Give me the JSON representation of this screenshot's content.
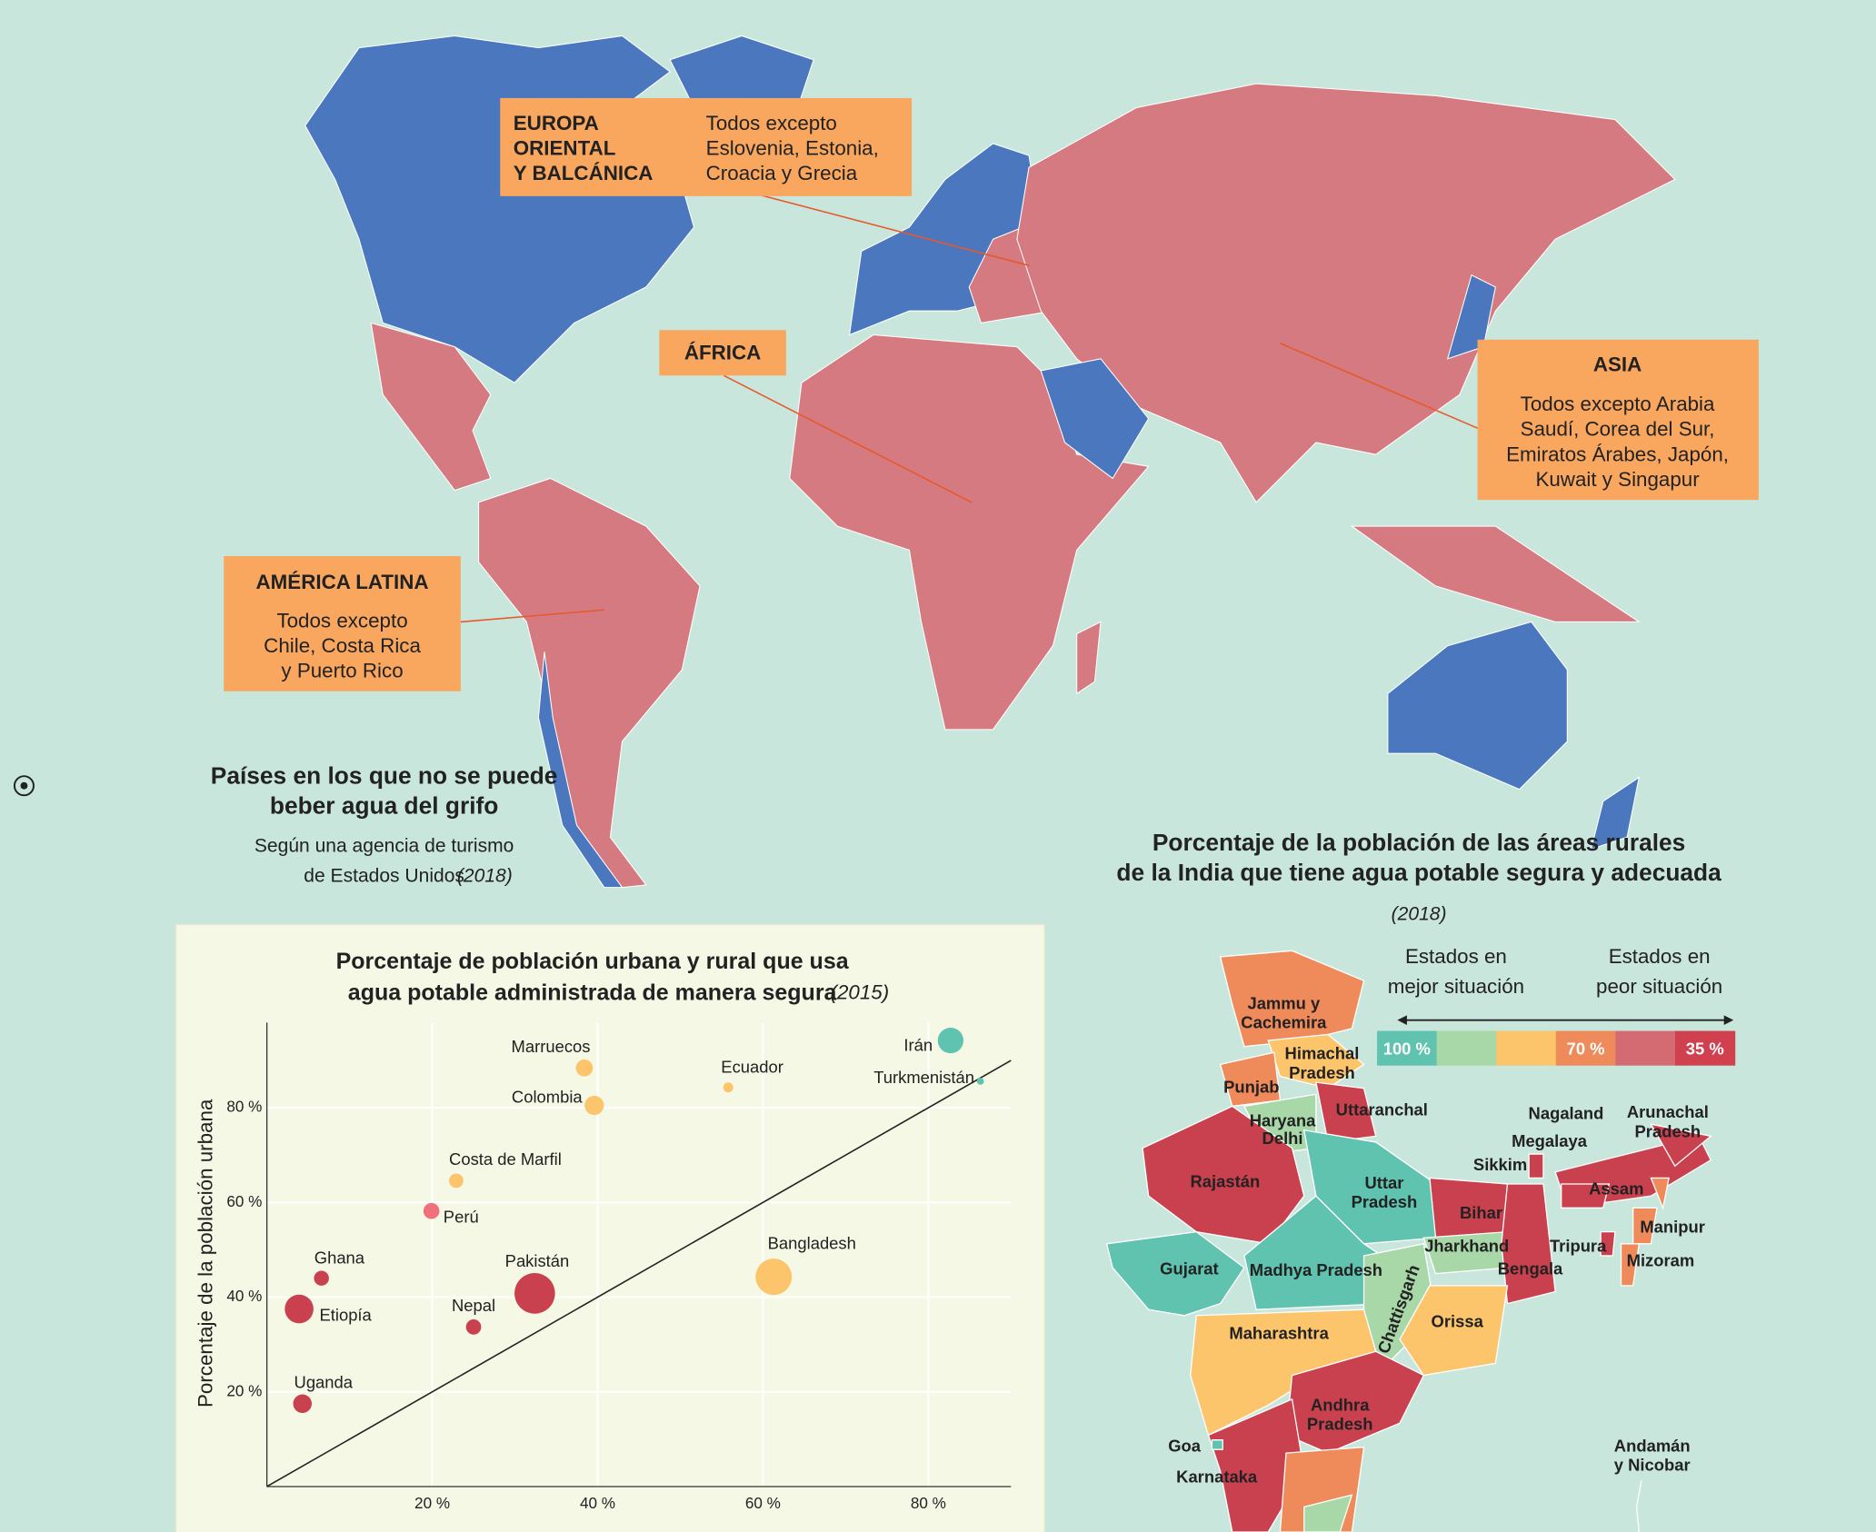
{
  "world_map": {
    "callouts": [
      {
        "title_lines": [
          "EUROPA",
          "ORIENTAL",
          "Y BALCÁNICA"
        ],
        "text_lines": [
          "Todos excepto",
          "Eslovenia, Estonia,",
          "Croacia y Grecia"
        ]
      },
      {
        "title_lines": [
          "ÁFRICA"
        ],
        "text_lines": []
      },
      {
        "title_lines": [
          "ASIA"
        ],
        "text_lines": [
          "Todos excepto Arabia",
          "Saudí, Corea del Sur,",
          "Emiratos Árabes, Japón,",
          "Kuwait y Singapur"
        ]
      },
      {
        "title_lines": [
          "AMÉRICA LATINA"
        ],
        "text_lines": [
          "Todos excepto",
          "Chile, Costa Rica",
          "y Puerto Rico"
        ]
      }
    ],
    "title_lines": [
      "Países en los que no se puede",
      "beber agua del grifo"
    ],
    "subtitle_lines": [
      "Según una agencia de turismo",
      "de Estados Unidos"
    ],
    "year": "(2018)"
  },
  "chart_data": {
    "type": "scatter",
    "title": [
      "Porcentaje de población urbana y rural que usa",
      "agua potable administrada de manera segura"
    ],
    "subtitle": "(2015)",
    "ylabel": "Porcentaje de la población urbana",
    "labels": [
      "Irán",
      "Turkmenistán",
      "Marruecos",
      "Ecuador",
      "Colombia",
      "Costa de Marfil",
      "Perú",
      "Ghana",
      "Etiopía",
      "Nepal",
      "Pakistán",
      "Bangladesh",
      "Uganda"
    ],
    "x": [
      82.7,
      86.3,
      38.4,
      55.8,
      39.6,
      22.9,
      19.9,
      6.6,
      3.9,
      25.0,
      32.4,
      61.3,
      4.3
    ],
    "values": [
      94.2,
      85.6,
      88.4,
      84.3,
      80.5,
      64.6,
      58.2,
      44.0,
      37.5,
      33.7,
      40.8,
      44.3,
      17.5
    ],
    "sizes": [
      80,
      6,
      35,
      12,
      45,
      25,
      31,
      27,
      100,
      28,
      200,
      160,
      42
    ],
    "colors": [
      "#5fc3b0",
      "#5fc3b0",
      "#fcc46b",
      "#fcc46b",
      "#fcc46b",
      "#fcc46b",
      "#ef7078",
      "#c9404e",
      "#c9404e",
      "#c9404e",
      "#c9404e",
      "#fcc46b",
      "#c9404e"
    ],
    "xlim": [
      0,
      90
    ],
    "ylim": [
      0,
      98
    ],
    "xticks": [
      {
        "value": 20,
        "label": "20 %"
      },
      {
        "value": 40,
        "label": "40 %"
      },
      {
        "value": 60,
        "label": "60 %"
      },
      {
        "value": 80,
        "label": "80 %"
      }
    ],
    "yticks": [
      {
        "value": 20,
        "label": "20 %"
      },
      {
        "value": 40,
        "label": "40 %"
      },
      {
        "value": 60,
        "label": "60 %"
      },
      {
        "value": 80,
        "label": "80 %"
      }
    ],
    "grid": true,
    "identity_line": true
  },
  "india_map": {
    "title_lines": [
      "Porcentaje de la población de las áreas rurales",
      "de la India que tiene agua potable segura y adecuada"
    ],
    "year": "(2018)",
    "legend": {
      "left": [
        "Estados en",
        "mejor situación"
      ],
      "right": [
        "Estados en",
        "peor situación"
      ],
      "colors": [
        "#5fc3b0",
        "#a8d8a8",
        "#fcc46b",
        "#ef8a5a",
        "#d46a72",
        "#d0404f"
      ],
      "labels": [
        "100 %",
        null,
        null,
        "70 %",
        null,
        "35 %"
      ]
    },
    "states": [
      [
        "Jammu y",
        "Cachemira"
      ],
      [
        "Himachal",
        "Pradesh"
      ],
      [
        "Punjab"
      ],
      [
        "Uttaranchal"
      ],
      [
        "Haryana"
      ],
      [
        "Delhi"
      ],
      [
        "Rajastán"
      ],
      [
        "Uttar",
        "Pradesh"
      ],
      [
        "Bihar"
      ],
      [
        "Sikkim"
      ],
      [
        "Nagaland"
      ],
      [
        "Arunachal",
        "Pradesh"
      ],
      [
        "Megalaya"
      ],
      [
        "Assam"
      ],
      [
        "Manipur"
      ],
      [
        "Tripura"
      ],
      [
        "Mizoram"
      ],
      [
        "Jharkhand"
      ],
      [
        "Bengala"
      ],
      [
        "Gujarat"
      ],
      [
        "Madhya Pradesh"
      ],
      [
        "Chattisgarh"
      ],
      [
        "Orissa"
      ],
      [
        "Maharashtra"
      ],
      [
        "Andhra",
        "Pradesh"
      ],
      [
        "Goa"
      ],
      [
        "Karnataka"
      ],
      [
        "Andamán",
        "y Nicobar"
      ]
    ]
  }
}
